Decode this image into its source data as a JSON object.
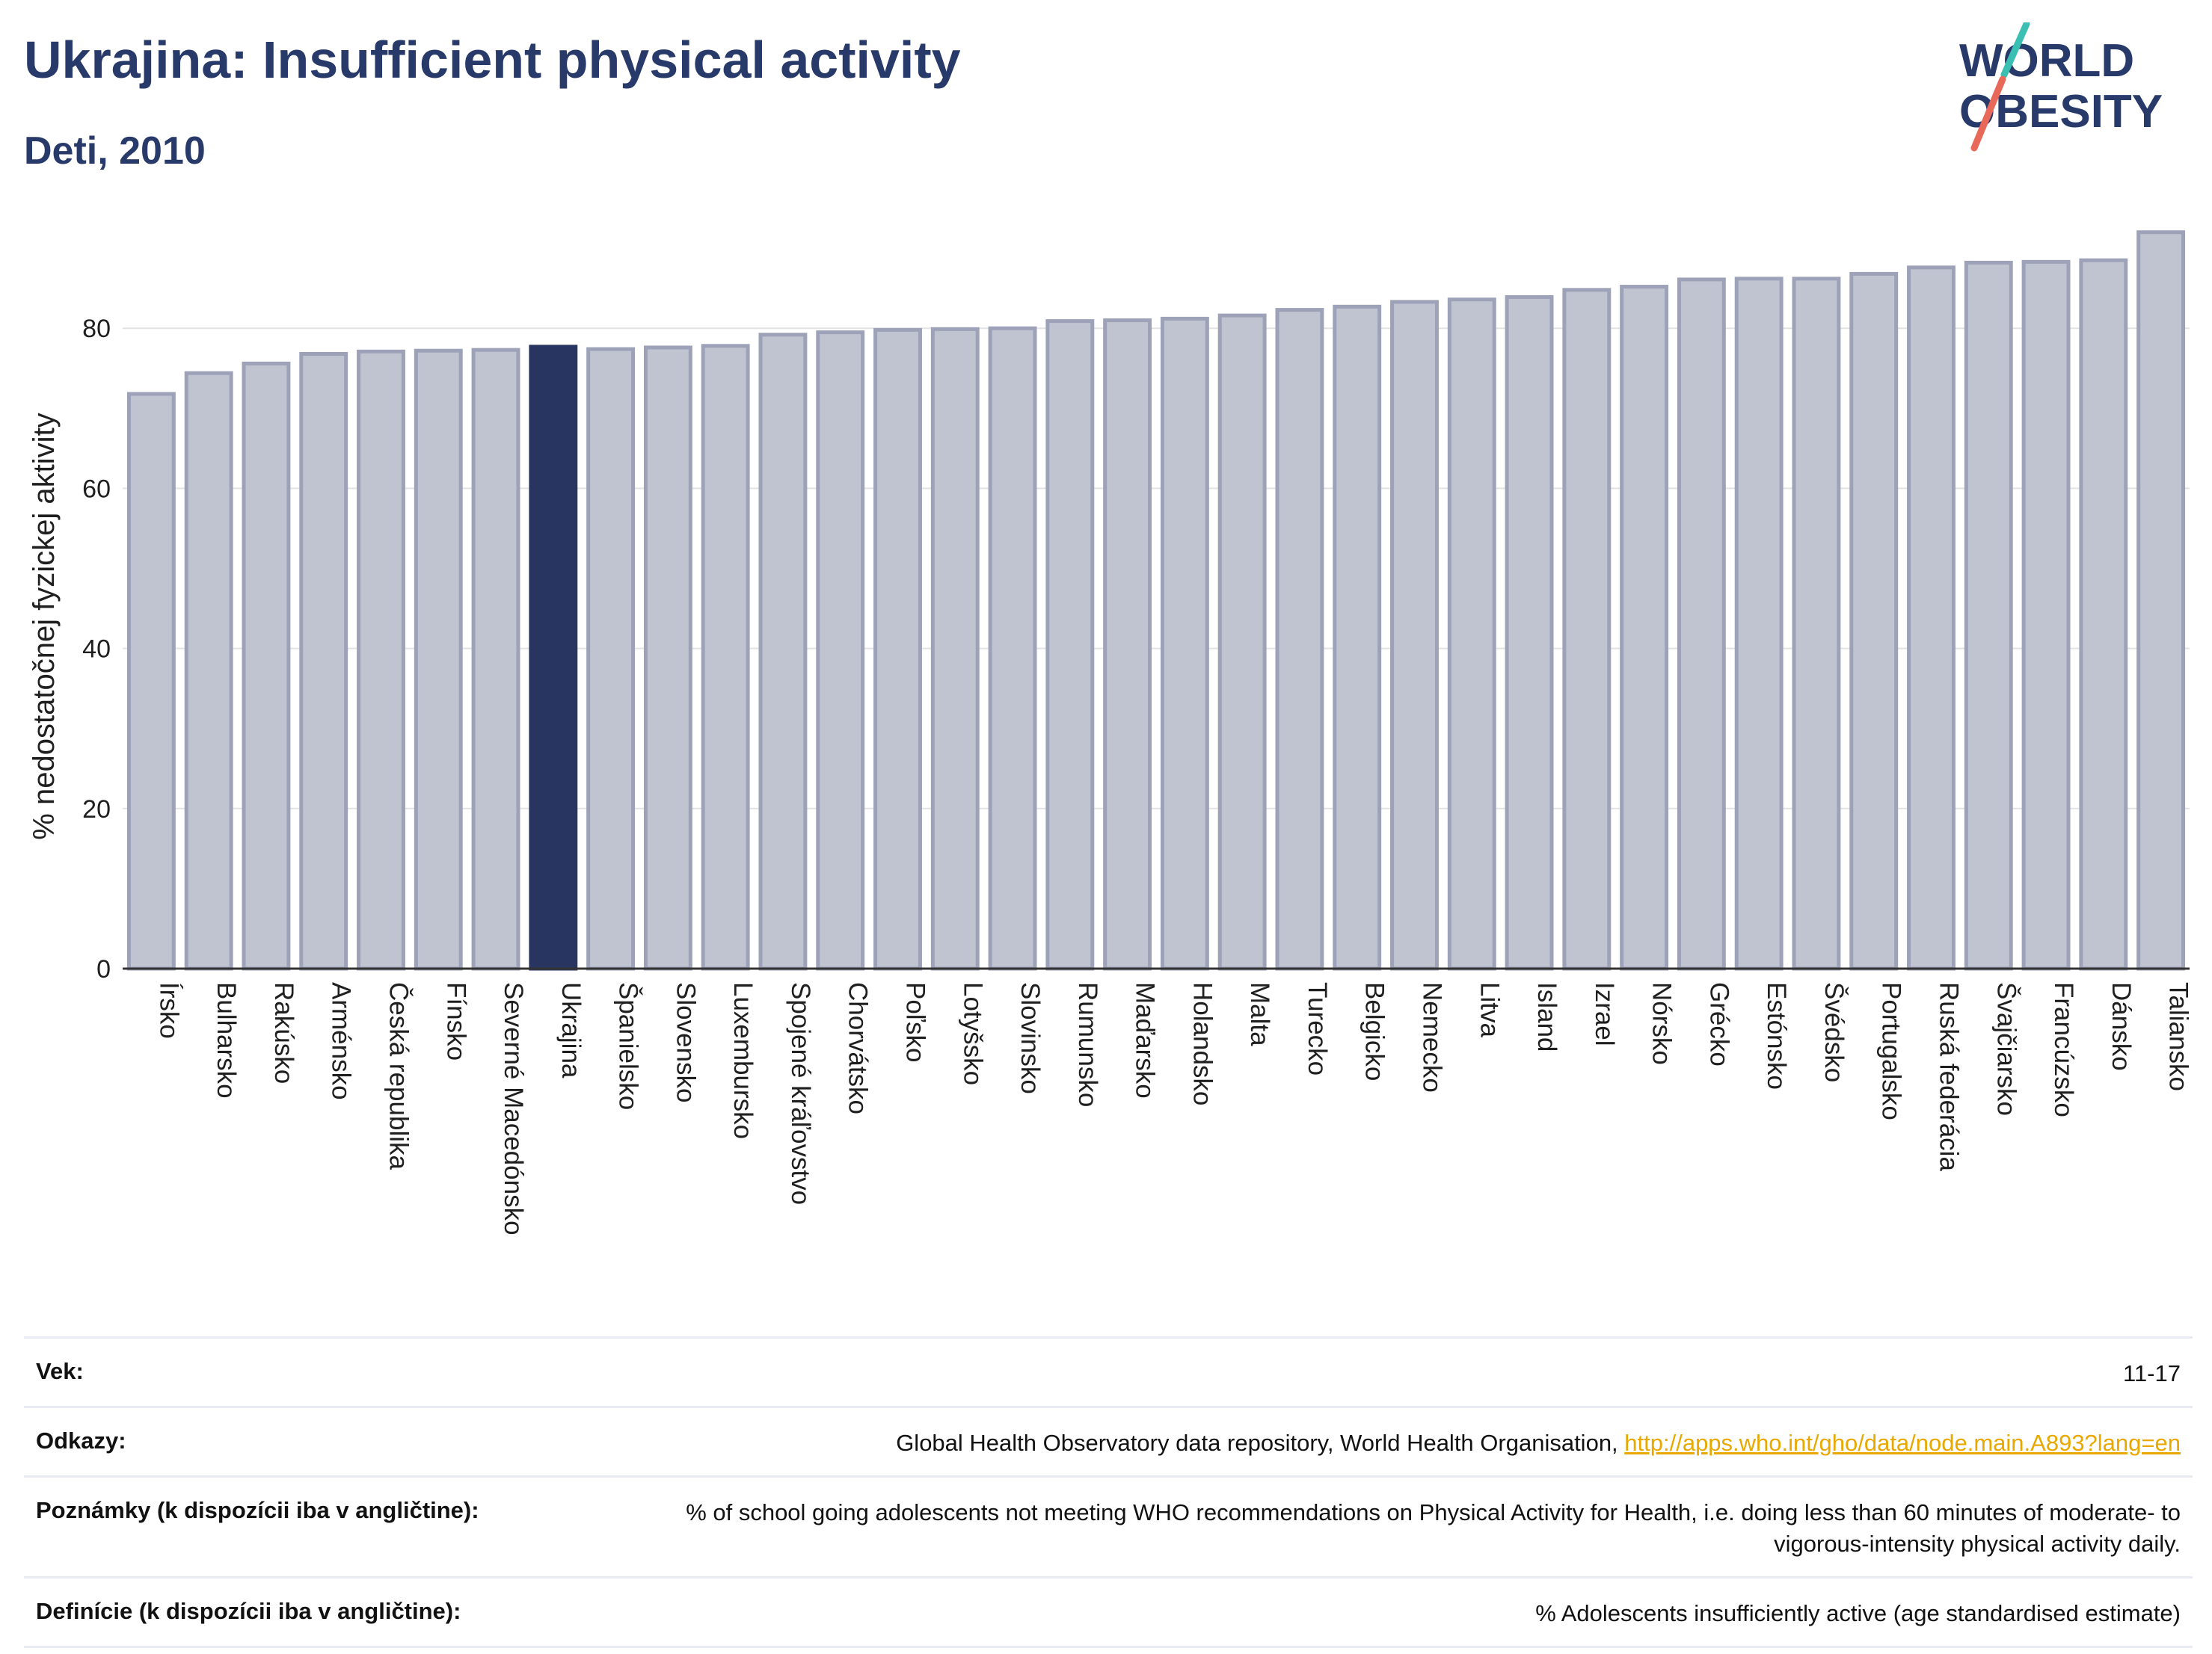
{
  "header": {
    "title": "Ukrajina: Insufficient physical activity",
    "subtitle": "Deti, 2010"
  },
  "logo": {
    "line1": "WORLD",
    "line2": "OBESITY"
  },
  "colors": {
    "bar": "#c0c3d0",
    "bar_stroke": "#9da2b8",
    "highlight": "#283560",
    "title": "#283a6a",
    "link": "#e9a800"
  },
  "chart_data": {
    "type": "bar",
    "ylabel": "% nedostatočnej fyzickej aktivity",
    "xlabel": "",
    "ylim": [
      0,
      93
    ],
    "yticks": [
      0,
      20,
      40,
      60,
      80
    ],
    "grid": true,
    "highlight": "Ukrajina",
    "categories": [
      "Írsko",
      "Bulharsko",
      "Rakúsko",
      "Arménsko",
      "Česká republika",
      "Fínsko",
      "Severné Macedónsko",
      "Ukrajina",
      "Španielsko",
      "Slovensko",
      "Luxembursko",
      "Spojené kráľovstvo",
      "Chorvátsko",
      "Poľsko",
      "Lotyšsko",
      "Slovinsko",
      "Rumunsko",
      "Maďarsko",
      "Holandsko",
      "Malta",
      "Turecko",
      "Belgicko",
      "Nemecko",
      "Litva",
      "Island",
      "Izrael",
      "Nórsko",
      "Grécko",
      "Estónsko",
      "Švédsko",
      "Portugalsko",
      "Ruská federácia",
      "Švajčiarsko",
      "Francúzsko",
      "Dánsko",
      "Taliansko"
    ],
    "values": [
      71.8,
      74.4,
      75.6,
      76.8,
      77.1,
      77.2,
      77.3,
      77.7,
      77.4,
      77.6,
      77.8,
      79.2,
      79.5,
      79.8,
      79.9,
      80.0,
      80.9,
      81.0,
      81.2,
      81.6,
      82.3,
      82.7,
      83.3,
      83.6,
      83.9,
      84.8,
      85.2,
      86.1,
      86.2,
      86.2,
      86.8,
      87.6,
      88.2,
      88.3,
      88.5,
      92.0
    ]
  },
  "info_table": [
    {
      "key": "Vek:",
      "value": "11-17"
    },
    {
      "key": "Odkazy:",
      "value": "Global Health Observatory data repository, World Health Organisation, ",
      "link": "http://apps.who.int/gho/data/node.main.A893?lang=en"
    },
    {
      "key": "Poznámky (k dispozícii iba v angličtine):",
      "value": "% of school going adolescents not meeting WHO recommendations on Physical Activity for Health, i.e. doing less than 60 minutes of moderate- to vigorous-intensity physical activity daily."
    },
    {
      "key": "Definície (k dispozícii iba v angličtine):",
      "value": "% Adolescents insufficiently active (age standardised estimate)"
    }
  ]
}
